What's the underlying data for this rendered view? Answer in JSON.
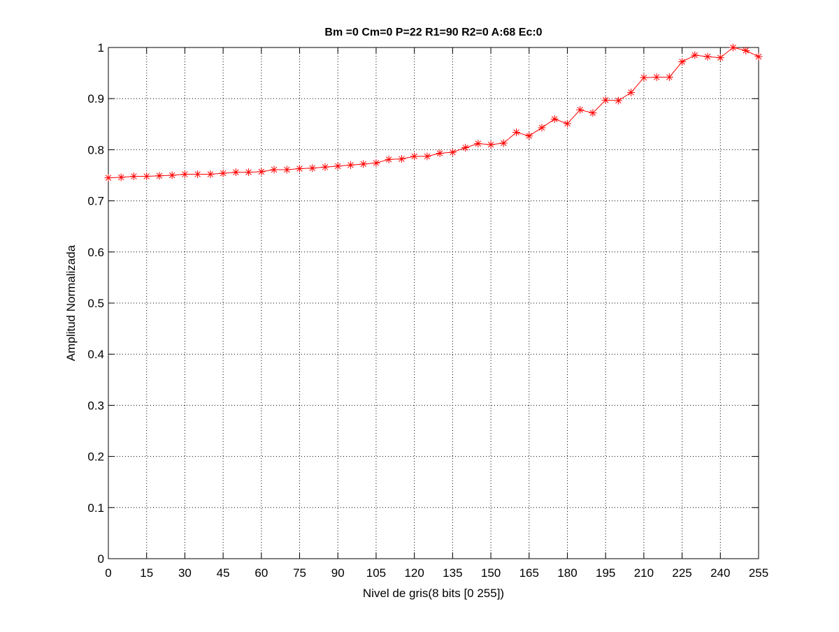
{
  "chart_data": {
    "type": "line",
    "title": "Bm =0  Cm=0  P=22  R1=90  R2=0  A:68  Ec:0",
    "xlabel": "Nivel de gris(8 bits [0 255])",
    "ylabel": "Amplitud Normalizada",
    "xlim": [
      0,
      255
    ],
    "ylim": [
      0,
      1
    ],
    "xticks": [
      0,
      15,
      30,
      45,
      60,
      75,
      90,
      105,
      120,
      135,
      150,
      165,
      180,
      195,
      210,
      225,
      240,
      255
    ],
    "yticks": [
      0,
      0.1,
      0.2,
      0.3,
      0.4,
      0.5,
      0.6,
      0.7,
      0.8,
      0.9,
      1
    ],
    "grid": true,
    "legend": "none",
    "series": [
      {
        "color": "#ff0000",
        "marker": "asterisk",
        "x": [
          0,
          5,
          10,
          15,
          20,
          25,
          30,
          35,
          40,
          45,
          50,
          55,
          60,
          65,
          70,
          75,
          80,
          85,
          90,
          95,
          100,
          105,
          110,
          115,
          120,
          125,
          130,
          135,
          140,
          145,
          150,
          155,
          160,
          165,
          170,
          175,
          180,
          185,
          190,
          195,
          200,
          205,
          210,
          215,
          220,
          225,
          230,
          235,
          240,
          245,
          250,
          255
        ],
        "y": [
          0.745,
          0.746,
          0.748,
          0.748,
          0.749,
          0.75,
          0.752,
          0.752,
          0.752,
          0.754,
          0.756,
          0.756,
          0.757,
          0.761,
          0.761,
          0.763,
          0.764,
          0.766,
          0.768,
          0.77,
          0.772,
          0.774,
          0.781,
          0.782,
          0.787,
          0.787,
          0.793,
          0.795,
          0.804,
          0.812,
          0.81,
          0.813,
          0.834,
          0.827,
          0.843,
          0.86,
          0.851,
          0.878,
          0.872,
          0.897,
          0.896,
          0.912,
          0.941,
          0.942,
          0.942,
          0.972,
          0.985,
          0.982,
          0.98,
          1.0,
          0.994,
          0.982
        ]
      }
    ]
  }
}
